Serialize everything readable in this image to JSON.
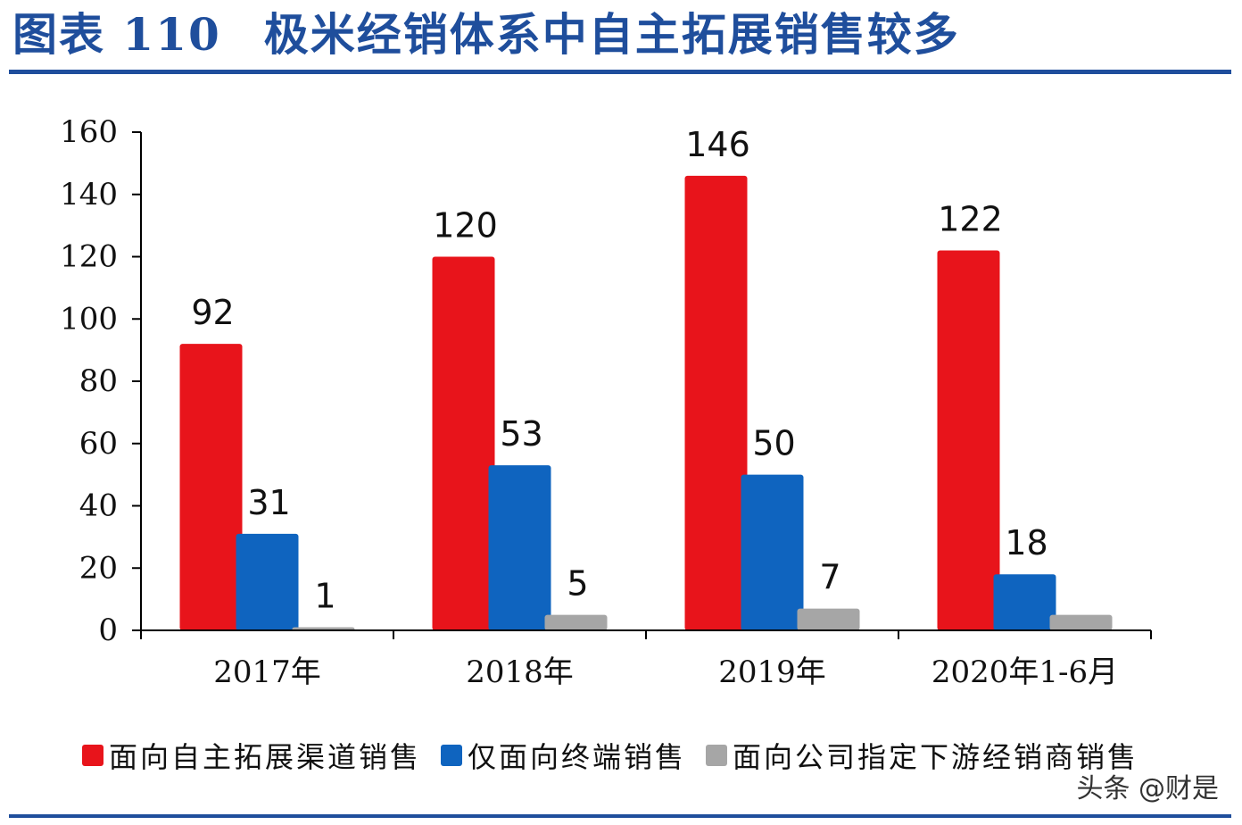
{
  "header": {
    "figure_no": "图表 110",
    "title": "极米经销体系中自主拓展销售较多"
  },
  "chart_data": {
    "type": "bar",
    "title": "",
    "xlabel": "",
    "ylabel": "",
    "ylim": [
      0,
      160
    ],
    "yticks": [
      0,
      20,
      40,
      60,
      80,
      100,
      120,
      140,
      160
    ],
    "categories": [
      "2017年",
      "2018年",
      "2019年",
      "2020年1-6月"
    ],
    "series": [
      {
        "name": "面向自主拓展渠道销售",
        "color": "#e8141b",
        "values": [
          92,
          120,
          146,
          122
        ]
      },
      {
        "name": "仅面向终端销售",
        "color": "#0f64bf",
        "values": [
          31,
          53,
          50,
          18
        ]
      },
      {
        "name": "面向公司指定下游经销商销售",
        "color": "#a6a6a6",
        "values": [
          1,
          5,
          7,
          5
        ]
      }
    ],
    "data_labels": [
      [
        "92",
        "120",
        "146",
        "122"
      ],
      [
        "31",
        "53",
        "50",
        "18"
      ],
      [
        "1",
        "5",
        "7",
        ""
      ]
    ],
    "legend_position": "bottom",
    "grid": false
  },
  "watermark": "头条 @财是"
}
